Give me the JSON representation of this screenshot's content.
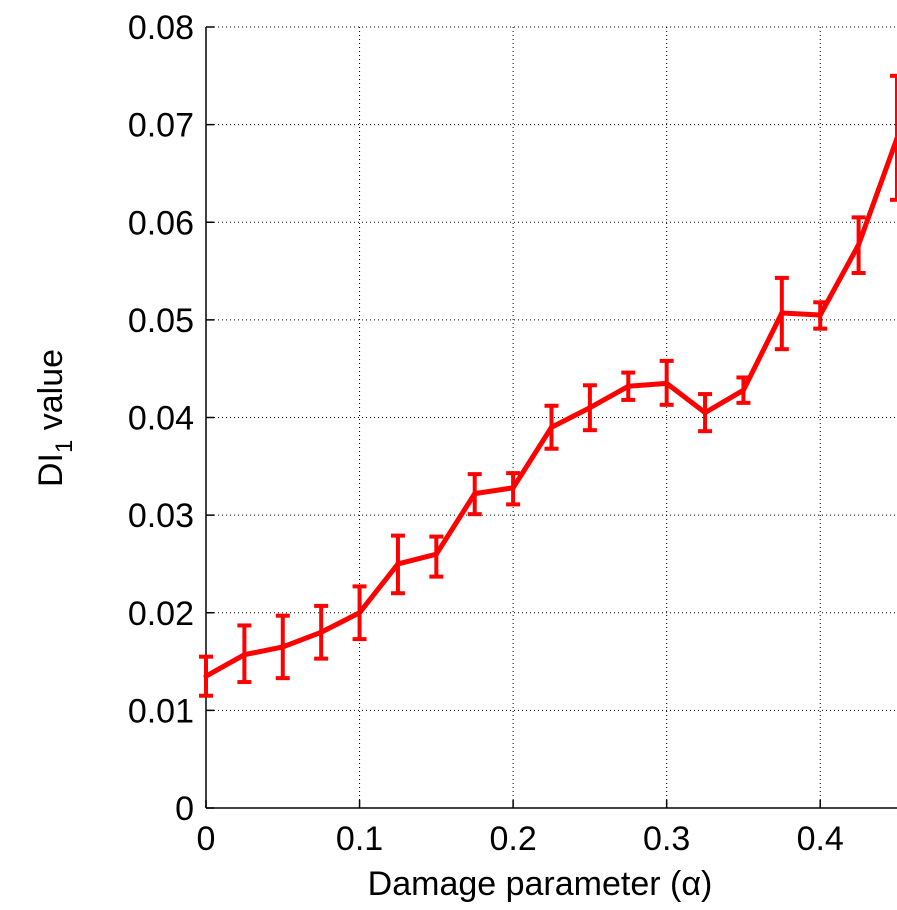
{
  "chart_data": {
    "type": "line",
    "xlabel": "Damage parameter (α)",
    "ylabel": {
      "prefix": "DI",
      "subscript": "1",
      "suffix": " value"
    },
    "xlim": [
      0,
      0.45
    ],
    "ylim": [
      0,
      0.08
    ],
    "x_ticks": [
      0,
      0.1,
      0.2,
      0.3,
      0.4
    ],
    "x_tick_labels": [
      "0",
      "0.1",
      "0.2",
      "0.3",
      "0.4"
    ],
    "y_ticks": [
      0,
      0.01,
      0.02,
      0.03,
      0.04,
      0.05,
      0.06,
      0.07,
      0.08
    ],
    "y_tick_labels": [
      "0",
      "0.01",
      "0.02",
      "0.03",
      "0.04",
      "0.05",
      "0.06",
      "0.07",
      "0.08"
    ],
    "grid": true,
    "series": [
      {
        "color": "#ff0000",
        "x": [
          0,
          0.025,
          0.05,
          0.075,
          0.1,
          0.125,
          0.15,
          0.175,
          0.2,
          0.225,
          0.25,
          0.275,
          0.3,
          0.325,
          0.35,
          0.375,
          0.4,
          0.425,
          0.45
        ],
        "y": [
          0.0135,
          0.0157,
          0.0165,
          0.018,
          0.02,
          0.025,
          0.026,
          0.0322,
          0.0328,
          0.039,
          0.041,
          0.0432,
          0.0435,
          0.0405,
          0.0428,
          0.0507,
          0.0505,
          0.0577,
          0.0686
        ],
        "err_low": [
          0.0115,
          0.0129,
          0.0133,
          0.0153,
          0.0173,
          0.022,
          0.0237,
          0.0301,
          0.0311,
          0.0368,
          0.0387,
          0.0418,
          0.0413,
          0.0386,
          0.0415,
          0.047,
          0.0491,
          0.0548,
          0.0623
        ],
        "err_high": [
          0.0155,
          0.0187,
          0.0197,
          0.0207,
          0.0227,
          0.0279,
          0.0278,
          0.0342,
          0.0343,
          0.0412,
          0.0433,
          0.0446,
          0.0458,
          0.0424,
          0.0441,
          0.0543,
          0.0518,
          0.0605,
          0.075
        ]
      }
    ]
  }
}
